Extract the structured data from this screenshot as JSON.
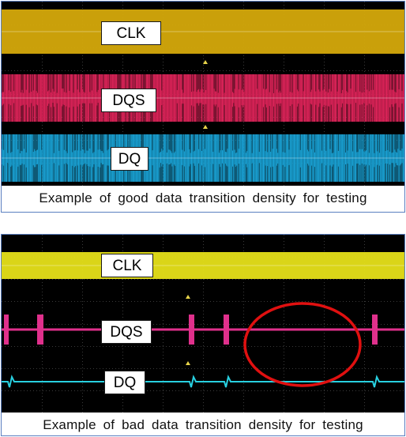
{
  "good_panel": {
    "caption": "Example of good data transition density for testing",
    "traces": [
      {
        "label": "CLK",
        "color": "#d4a90a",
        "activity": "dense"
      },
      {
        "label": "DQS",
        "color": "#e0245a",
        "activity": "dense"
      },
      {
        "label": "DQ",
        "color": "#1aa3d6",
        "activity": "dense"
      }
    ]
  },
  "bad_panel": {
    "caption": "Example of bad data transition density for testing",
    "traces": [
      {
        "label": "CLK",
        "color": "#e6e01a",
        "activity": "dense"
      },
      {
        "label": "DQS",
        "color": "#e0308c",
        "activity": "sparse"
      },
      {
        "label": "DQ",
        "color": "#28d0e0",
        "activity": "sparse"
      }
    ],
    "highlight_color": "#e01010"
  },
  "colors": {
    "scope_background": "#000000",
    "grid": "#3a3a3a",
    "border": "#5b7fc0"
  }
}
